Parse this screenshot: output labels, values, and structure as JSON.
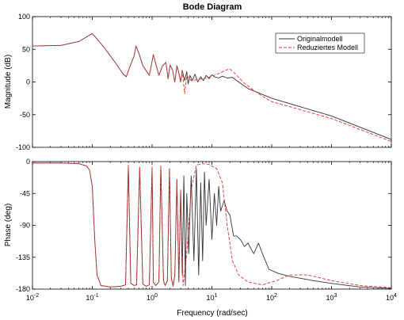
{
  "chart_data": {
    "type": "line",
    "title": "Bode Diagram",
    "xlabel": "Frequency (rad/sec)",
    "xscale": "log",
    "xlim": [
      0.01,
      10000
    ],
    "xticks": [
      {
        "value": 0.01,
        "base": "10",
        "exp": "-2"
      },
      {
        "value": 0.1,
        "base": "10",
        "exp": "-1"
      },
      {
        "value": 1,
        "base": "10",
        "exp": "0"
      },
      {
        "value": 10,
        "base": "10",
        "exp": "1"
      },
      {
        "value": 100,
        "base": "10",
        "exp": "2"
      },
      {
        "value": 1000,
        "base": "10",
        "exp": "3"
      },
      {
        "value": 10000,
        "base": "10",
        "exp": "4"
      }
    ],
    "grid": false,
    "legend": {
      "placement": "top-right",
      "entries": [
        {
          "name": "Originalmodell",
          "color": "#333333",
          "dash": "solid"
        },
        {
          "name": "Reduziertes Modell",
          "color": "#e8322c",
          "dash": "dashed"
        }
      ]
    },
    "magnitude": {
      "ylabel": "Magnitude (dB)",
      "ylim": [
        -100,
        100
      ],
      "yticks": [
        "100",
        "50",
        "0",
        "-50",
        "-100"
      ],
      "yvalues": [
        100,
        50,
        0,
        -50,
        -100
      ],
      "series": [
        {
          "name": "Originalmodell",
          "x": [
            0.01,
            0.03,
            0.06,
            0.08,
            0.1,
            0.12,
            0.16,
            0.25,
            0.33,
            0.37,
            0.42,
            0.5,
            0.54,
            0.6,
            0.7,
            0.9,
            1.05,
            1.15,
            1.3,
            1.5,
            1.7,
            1.85,
            2.0,
            2.2,
            2.4,
            2.6,
            2.8,
            3.0,
            3.2,
            3.5,
            3.8,
            4.0,
            4.3,
            4.7,
            5.2,
            5.8,
            6.5,
            7.2,
            8.0,
            9.0,
            10,
            11,
            13,
            15,
            18,
            22,
            28,
            40,
            100,
            1000,
            10000
          ],
          "y": [
            55,
            56,
            62,
            69,
            74,
            66,
            52,
            28,
            12,
            8,
            22,
            40,
            55,
            44,
            25,
            10,
            42,
            28,
            10,
            25,
            30,
            5,
            26,
            18,
            0,
            25,
            14,
            0,
            18,
            2,
            16,
            -3,
            10,
            2,
            12,
            0,
            8,
            2,
            10,
            5,
            11,
            8,
            6,
            9,
            6,
            7,
            0,
            -10,
            -25,
            -52,
            -88
          ]
        },
        {
          "name": "Reduziertes Modell",
          "x": [
            0.01,
            0.03,
            0.06,
            0.08,
            0.1,
            0.12,
            0.16,
            0.25,
            0.33,
            0.37,
            0.42,
            0.5,
            0.54,
            0.6,
            0.7,
            0.9,
            1.05,
            1.15,
            1.3,
            1.5,
            1.7,
            1.85,
            2.0,
            2.2,
            2.4,
            2.6,
            2.8,
            3.0,
            3.2,
            3.5,
            3.8,
            4.5,
            6,
            8,
            10,
            13,
            17,
            20,
            25,
            35,
            60,
            100,
            1000,
            10000
          ],
          "y": [
            55,
            56,
            62,
            69,
            74,
            66,
            52,
            28,
            12,
            8,
            22,
            40,
            55,
            44,
            25,
            10,
            42,
            28,
            10,
            25,
            30,
            5,
            26,
            18,
            0,
            25,
            14,
            0,
            18,
            -18,
            10,
            2,
            4,
            6,
            9,
            13,
            18,
            20,
            12,
            -2,
            -18,
            -30,
            -56,
            -91
          ]
        }
      ]
    },
    "phase": {
      "ylabel": "Phase (deg)",
      "ylim": [
        -180,
        0
      ],
      "yticks": [
        "0",
        "-45",
        "-90",
        "-135",
        "-180"
      ],
      "yvalues": [
        0,
        -45,
        -90,
        -135,
        -180
      ],
      "series": [
        {
          "name": "Originalmodell",
          "x": [
            0.01,
            0.03,
            0.06,
            0.08,
            0.09,
            0.1,
            0.11,
            0.12,
            0.14,
            0.2,
            0.3,
            0.36,
            0.4,
            0.44,
            0.5,
            0.55,
            0.62,
            0.7,
            0.8,
            0.9,
            1.0,
            1.05,
            1.15,
            1.3,
            1.4,
            1.55,
            1.65,
            1.8,
            1.95,
            2.1,
            2.25,
            2.4,
            2.6,
            2.8,
            3.0,
            3.2,
            3.4,
            3.6,
            3.8,
            4.1,
            4.5,
            5.0,
            5.5,
            6.0,
            6.5,
            7.0,
            7.5,
            8.0,
            9.0,
            10,
            11,
            12,
            13,
            14,
            16,
            18,
            20,
            23,
            26,
            30,
            35,
            40,
            50,
            60,
            70,
            90,
            130,
            200,
            500,
            1000,
            3000,
            10000
          ],
          "y": [
            -2,
            -2,
            -3,
            -6,
            -12,
            -35,
            -110,
            -160,
            -175,
            -177,
            -176,
            -174,
            -5,
            -172,
            -175,
            -174,
            -8,
            -173,
            -176,
            -174,
            -8,
            -170,
            -175,
            -170,
            -6,
            -168,
            -175,
            -168,
            -10,
            -165,
            -176,
            -160,
            -25,
            -170,
            -40,
            -160,
            -20,
            -175,
            -45,
            -130,
            -20,
            -140,
            -10,
            -160,
            -30,
            -140,
            -15,
            -90,
            -25,
            -110,
            -45,
            -90,
            -35,
            -70,
            -55,
            -70,
            -75,
            -105,
            -105,
            -110,
            -120,
            -115,
            -130,
            -115,
            -130,
            -152,
            -158,
            -162,
            -168,
            -172,
            -177,
            -179
          ]
        },
        {
          "name": "Reduziertes Modell",
          "x": [
            0.01,
            0.03,
            0.06,
            0.08,
            0.09,
            0.1,
            0.11,
            0.12,
            0.14,
            0.2,
            0.3,
            0.36,
            0.4,
            0.44,
            0.5,
            0.55,
            0.62,
            0.7,
            0.8,
            0.9,
            1.0,
            1.05,
            1.15,
            1.3,
            1.4,
            1.55,
            1.65,
            1.8,
            1.95,
            2.1,
            2.25,
            2.4,
            2.6,
            2.8,
            3.0,
            3.3,
            3.8,
            4.5,
            5.5,
            7,
            9,
            12,
            15,
            18,
            22,
            28,
            40,
            70,
            120,
            200,
            400,
            1000,
            3000,
            10000
          ],
          "y": [
            -2,
            -2,
            -3,
            -6,
            -12,
            -35,
            -110,
            -160,
            -175,
            -177,
            -176,
            -174,
            -5,
            -172,
            -175,
            -174,
            -8,
            -173,
            -176,
            -174,
            -8,
            -170,
            -175,
            -170,
            -6,
            -168,
            -175,
            -168,
            -10,
            -165,
            -176,
            -160,
            -25,
            -170,
            -40,
            -175,
            -130,
            -40,
            -5,
            -3,
            -4,
            -10,
            -30,
            -90,
            -140,
            -160,
            -170,
            -174,
            -168,
            -160,
            -160,
            -168,
            -175,
            -178
          ]
        }
      ]
    }
  }
}
